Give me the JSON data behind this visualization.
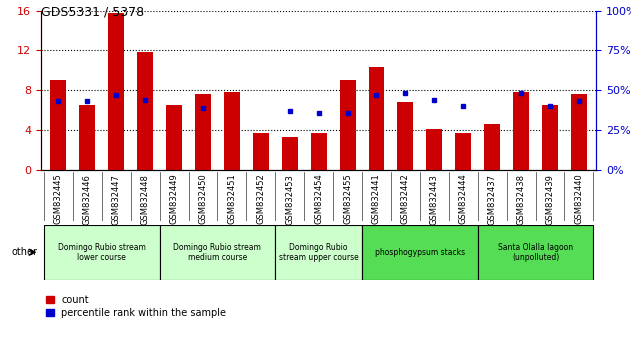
{
  "title": "GDS5331 / 5378",
  "categories": [
    "GSM832445",
    "GSM832446",
    "GSM832447",
    "GSM832448",
    "GSM832449",
    "GSM832450",
    "GSM832451",
    "GSM832452",
    "GSM832453",
    "GSM832454",
    "GSM832455",
    "GSM832441",
    "GSM832442",
    "GSM832443",
    "GSM832444",
    "GSM832437",
    "GSM832438",
    "GSM832439",
    "GSM832440"
  ],
  "count_values": [
    9.0,
    6.5,
    15.8,
    11.8,
    6.5,
    7.6,
    7.8,
    3.7,
    3.3,
    3.7,
    9.0,
    10.3,
    6.8,
    4.1,
    3.7,
    4.6,
    7.8,
    6.5,
    7.6
  ],
  "percentile_values": [
    43,
    43,
    47,
    44,
    null,
    39,
    null,
    null,
    37,
    36,
    36,
    47,
    48,
    44,
    40,
    null,
    48,
    40,
    43
  ],
  "left_ylim": [
    0,
    16
  ],
  "right_ylim": [
    0,
    100
  ],
  "left_yticks": [
    0,
    4,
    8,
    12,
    16
  ],
  "right_yticks": [
    0,
    25,
    50,
    75,
    100
  ],
  "bar_color": "#cc0000",
  "dot_color": "#0000cc",
  "left_tick_color": "#cc0000",
  "right_tick_color": "#0000cc",
  "xtick_bg": "#c8c8c8",
  "groups": [
    {
      "label": "Domingo Rubio stream\nlower course",
      "start": 0,
      "end": 4,
      "color": "#ccffcc"
    },
    {
      "label": "Domingo Rubio stream\nmedium course",
      "start": 4,
      "end": 8,
      "color": "#ccffcc"
    },
    {
      "label": "Domingo Rubio\nstream upper course",
      "start": 8,
      "end": 11,
      "color": "#ccffcc"
    },
    {
      "label": "phosphogypsum stacks",
      "start": 11,
      "end": 15,
      "color": "#55dd55"
    },
    {
      "label": "Santa Olalla lagoon\n(unpolluted)",
      "start": 15,
      "end": 19,
      "color": "#55dd55"
    }
  ],
  "legend_count_label": "count",
  "legend_percentile_label": "percentile rank within the sample",
  "other_label": "other",
  "bar_width": 0.55
}
